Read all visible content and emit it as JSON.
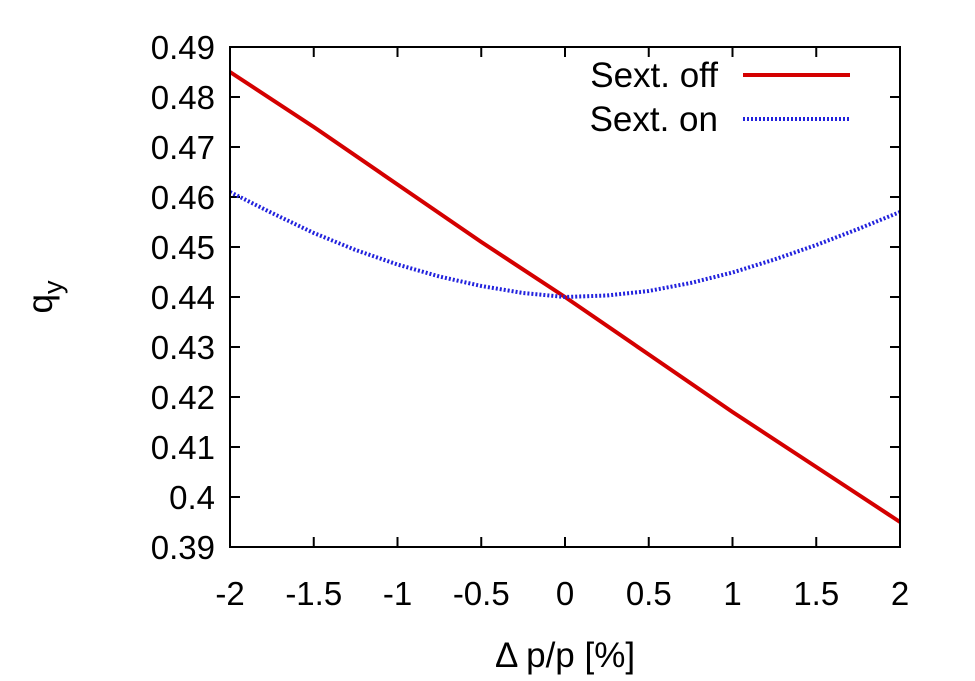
{
  "chart_data": {
    "type": "line",
    "title": "",
    "xlabel": "Δ p/p [%]",
    "ylabel_main": "q",
    "ylabel_sub": "y",
    "xlim": [
      -2,
      2
    ],
    "ylim": [
      0.39,
      0.49
    ],
    "x_ticks": [
      -2,
      -1.5,
      -1,
      -0.5,
      0,
      0.5,
      1,
      1.5,
      2
    ],
    "x_tick_labels": [
      "-2",
      "-1.5",
      "-1",
      "-0.5",
      "0",
      "0.5",
      "1",
      "1.5",
      "2"
    ],
    "y_ticks": [
      0.39,
      0.4,
      0.41,
      0.42,
      0.43,
      0.44,
      0.45,
      0.46,
      0.47,
      0.48,
      0.49
    ],
    "y_tick_labels": [
      "0.39",
      "0.4",
      "0.41",
      "0.42",
      "0.43",
      "0.44",
      "0.45",
      "0.46",
      "0.47",
      "0.48",
      "0.49"
    ],
    "grid": false,
    "legend_position": "top-right",
    "series": [
      {
        "name": "Sext. off",
        "color": "#d40000",
        "style": "solid",
        "x": [
          -2,
          -1.5,
          -1,
          -0.5,
          0,
          0.5,
          1,
          1.5,
          2
        ],
        "y": [
          0.485,
          0.474,
          0.4625,
          0.451,
          0.44,
          0.4285,
          0.417,
          0.406,
          0.395
        ]
      },
      {
        "name": "Sext. on",
        "color": "#2222dd",
        "style": "dotted",
        "x": [
          -2,
          -1.75,
          -1.5,
          -1.25,
          -1,
          -0.75,
          -0.5,
          -0.25,
          0,
          0.25,
          0.5,
          0.75,
          1,
          1.25,
          1.5,
          1.75,
          2
        ],
        "y": [
          0.461,
          0.4568,
          0.4528,
          0.4494,
          0.4465,
          0.4441,
          0.4422,
          0.4408,
          0.44,
          0.4403,
          0.4412,
          0.4428,
          0.4449,
          0.4475,
          0.4504,
          0.4536,
          0.457
        ]
      }
    ]
  }
}
